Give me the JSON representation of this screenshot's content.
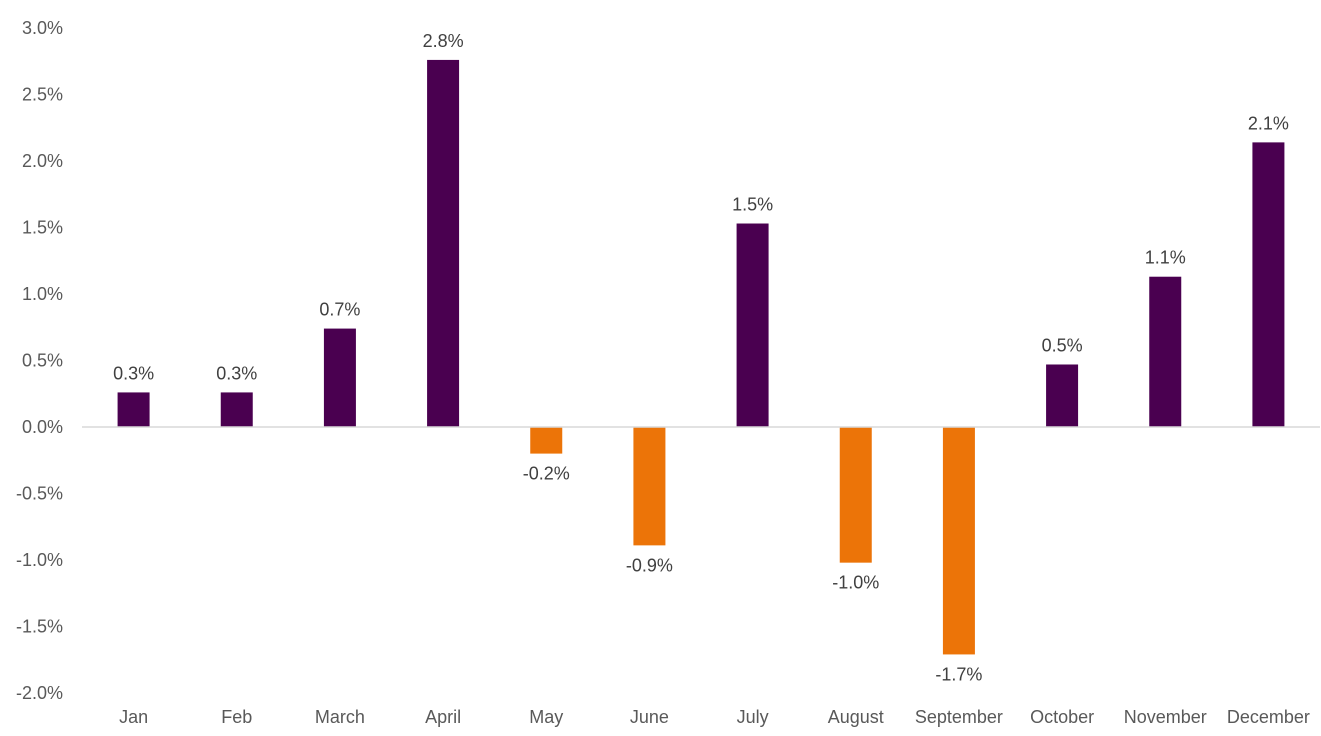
{
  "chart_data": {
    "type": "bar",
    "title": "",
    "xlabel": "",
    "ylabel": "",
    "categories": [
      "Jan",
      "Feb",
      "March",
      "April",
      "May",
      "June",
      "July",
      "August",
      "September",
      "October",
      "November",
      "December"
    ],
    "values": [
      0.26,
      0.26,
      0.74,
      2.76,
      -0.2,
      -0.89,
      1.53,
      -1.02,
      -1.71,
      0.47,
      1.13,
      2.14
    ],
    "data_labels": [
      "0.3%",
      "0.3%",
      "0.7%",
      "2.8%",
      "-0.2%",
      "-0.9%",
      "1.5%",
      "-1.0%",
      "-1.7%",
      "0.5%",
      "1.1%",
      "2.1%"
    ],
    "y_ticks": [
      3.0,
      2.5,
      2.0,
      1.5,
      1.0,
      0.5,
      0.0,
      -0.5,
      -1.0,
      -1.5,
      -2.0
    ],
    "y_tick_labels": [
      "3.0%",
      "2.5%",
      "2.0%",
      "1.5%",
      "1.0%",
      "0.5%",
      "0.0%",
      "-0.5%",
      "-1.0%",
      "-1.5%",
      "-2.0%"
    ],
    "ylim": [
      -2.0,
      3.0
    ],
    "grid": false,
    "legend": "none",
    "colors": {
      "positive": "#4a0050",
      "negative": "#ec7408",
      "axis": "#d9d9d9"
    }
  }
}
